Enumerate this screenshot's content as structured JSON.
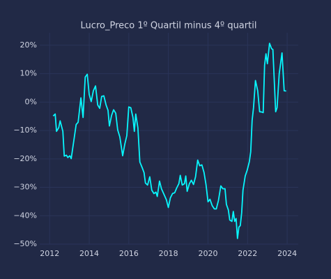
{
  "chart_data": {
    "type": "line",
    "title": "Lucro_Preco 1º Quartil minus 4º quartil",
    "x": [
      2012.18,
      2012.28,
      2012.35,
      2012.46,
      2012.53,
      2012.67,
      2012.74,
      2012.85,
      2012.92,
      2013.02,
      2013.09,
      2013.23,
      2013.34,
      2013.44,
      2013.58,
      2013.69,
      2013.8,
      2013.9,
      2014.0,
      2014.1,
      2014.21,
      2014.32,
      2014.43,
      2014.53,
      2014.63,
      2014.74,
      2014.85,
      2014.95,
      2015.02,
      2015.13,
      2015.23,
      2015.34,
      2015.44,
      2015.55,
      2015.69,
      2015.8,
      2015.9,
      2016.0,
      2016.1,
      2016.21,
      2016.28,
      2016.35,
      2016.46,
      2016.56,
      2016.67,
      2016.77,
      2016.84,
      2016.95,
      2017.06,
      2017.16,
      2017.27,
      2017.37,
      2017.44,
      2017.55,
      2017.65,
      2017.79,
      2017.9,
      2018.0,
      2018.1,
      2018.21,
      2018.32,
      2018.42,
      2018.53,
      2018.6,
      2018.7,
      2018.81,
      2018.88,
      2018.95,
      2019.06,
      2019.16,
      2019.27,
      2019.37,
      2019.48,
      2019.58,
      2019.69,
      2019.8,
      2019.9,
      2020.0,
      2020.1,
      2020.21,
      2020.32,
      2020.42,
      2020.53,
      2020.65,
      2020.75,
      2020.86,
      2020.93,
      2021.03,
      2021.1,
      2021.21,
      2021.28,
      2021.35,
      2021.42,
      2021.49,
      2021.56,
      2021.63,
      2021.7,
      2021.77,
      2021.88,
      2021.98,
      2022.09,
      2022.16,
      2022.23,
      2022.3,
      2022.4,
      2022.51,
      2022.61,
      2022.72,
      2022.79,
      2022.86,
      2022.93,
      2023.0,
      2023.11,
      2023.21,
      2023.28,
      2023.42,
      2023.49,
      2023.6,
      2023.74,
      2023.85,
      2023.95
    ],
    "series": [
      {
        "color": "#08f7fe",
        "values": [
          -4.9,
          -4.2,
          -10.3,
          -9,
          -6.6,
          -10.3,
          -19,
          -18.7,
          -19.5,
          -18.9,
          -19.9,
          -13.3,
          -7.9,
          -7.1,
          1.5,
          -5.4,
          8.8,
          9.8,
          2.7,
          0.2,
          4,
          5.7,
          -1,
          -2.2,
          2,
          2.2,
          -1,
          -2.9,
          -8.4,
          -4.7,
          -2.7,
          -3.9,
          -9.8,
          -12.3,
          -18.9,
          -14.7,
          -11.8,
          -1.7,
          -2,
          -5.4,
          -10.3,
          -4.2,
          -9.1,
          -21.1,
          -23,
          -24.8,
          -28.5,
          -29.2,
          -26.3,
          -31,
          -32.2,
          -31.7,
          -33.2,
          -27.8,
          -30.5,
          -32.7,
          -34.4,
          -37.1,
          -33.7,
          -32.2,
          -31.9,
          -30.2,
          -28.7,
          -25.8,
          -29.2,
          -28.7,
          -26,
          -31.4,
          -28.7,
          -27.5,
          -29,
          -26.3,
          -20.4,
          -22.4,
          -22.1,
          -24.8,
          -29,
          -35.1,
          -34.2,
          -36.4,
          -37.6,
          -37.6,
          -34.6,
          -29.5,
          -30.5,
          -30.5,
          -36,
          -38,
          -41.5,
          -42,
          -38.5,
          -42,
          -41,
          -48,
          -44,
          -43.5,
          -39,
          -31,
          -26,
          -24,
          -21,
          -17.5,
          -6.5,
          -2,
          7.6,
          4,
          -3.4,
          -3.5,
          -3.7,
          13,
          17,
          13.5,
          20.7,
          18.8,
          18.5,
          -3.4,
          -2,
          10,
          17.3,
          4,
          3.9
        ]
      }
    ],
    "xlim": [
      2011.5,
      2024.56
    ],
    "xticks": [
      2012,
      2014,
      2016,
      2018,
      2020,
      2022,
      2024
    ],
    "ylim": [
      -50,
      24.4
    ],
    "yticks": [
      {
        "value": -50,
        "label": "−50%"
      },
      {
        "value": -40,
        "label": "−40%"
      },
      {
        "value": -30,
        "label": "−30%"
      },
      {
        "value": -20,
        "label": "−20%"
      },
      {
        "value": -10,
        "label": "−10%"
      },
      {
        "value": 0,
        "label": "0%"
      },
      {
        "value": 10,
        "label": "10%"
      },
      {
        "value": 20,
        "label": "20%"
      }
    ],
    "grid": true
  }
}
